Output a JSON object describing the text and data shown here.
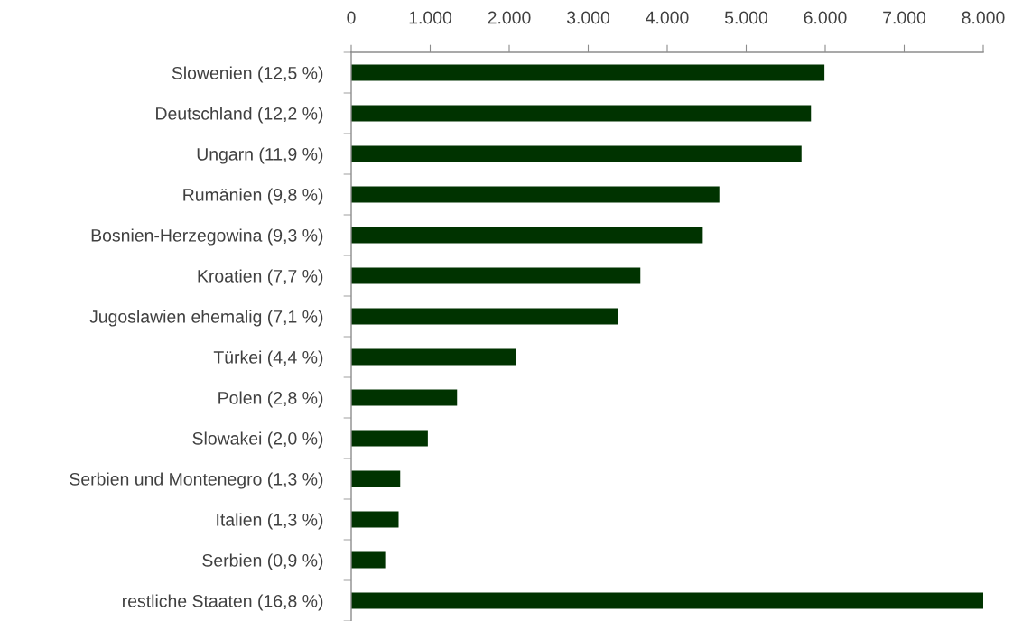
{
  "chart_data": {
    "type": "bar",
    "orientation": "horizontal",
    "categories": [
      "Slowenien (12,5 %)",
      "Deutschland (12,2 %)",
      "Ungarn (11,9 %)",
      "Rumänien (9,8 %)",
      "Bosnien-Herzegowina (9,3 %)",
      "Kroatien (7,7 %)",
      "Jugoslawien ehemalig (7,1 %)",
      "Türkei (4,4 %)",
      "Polen (2,8 %)",
      "Slowakei (2,0 %)",
      "Serbien und Montenegro (1,3 %)",
      "Italien (1,3 %)",
      "Serbien (0,9 %)",
      "restliche Staaten (16,8 %)"
    ],
    "values": [
      5990,
      5820,
      5700,
      4660,
      4450,
      3660,
      3380,
      2090,
      1340,
      970,
      620,
      600,
      430,
      8000
    ],
    "color": "#003300",
    "xlim": [
      0,
      8000
    ],
    "xticks": [
      0,
      {
        "value": 1000,
        "label": "1.000"
      },
      {
        "value": 2000,
        "label": "2.000"
      },
      {
        "value": 3000,
        "label": "3.000"
      },
      {
        "value": 4000,
        "label": "4.000"
      },
      {
        "value": 5000,
        "label": "5.000"
      },
      {
        "value": 6000,
        "label": "6.000"
      },
      {
        "value": 7000,
        "label": "7.000"
      },
      {
        "value": 8000,
        "label": "8.000"
      }
    ],
    "grid": false
  }
}
